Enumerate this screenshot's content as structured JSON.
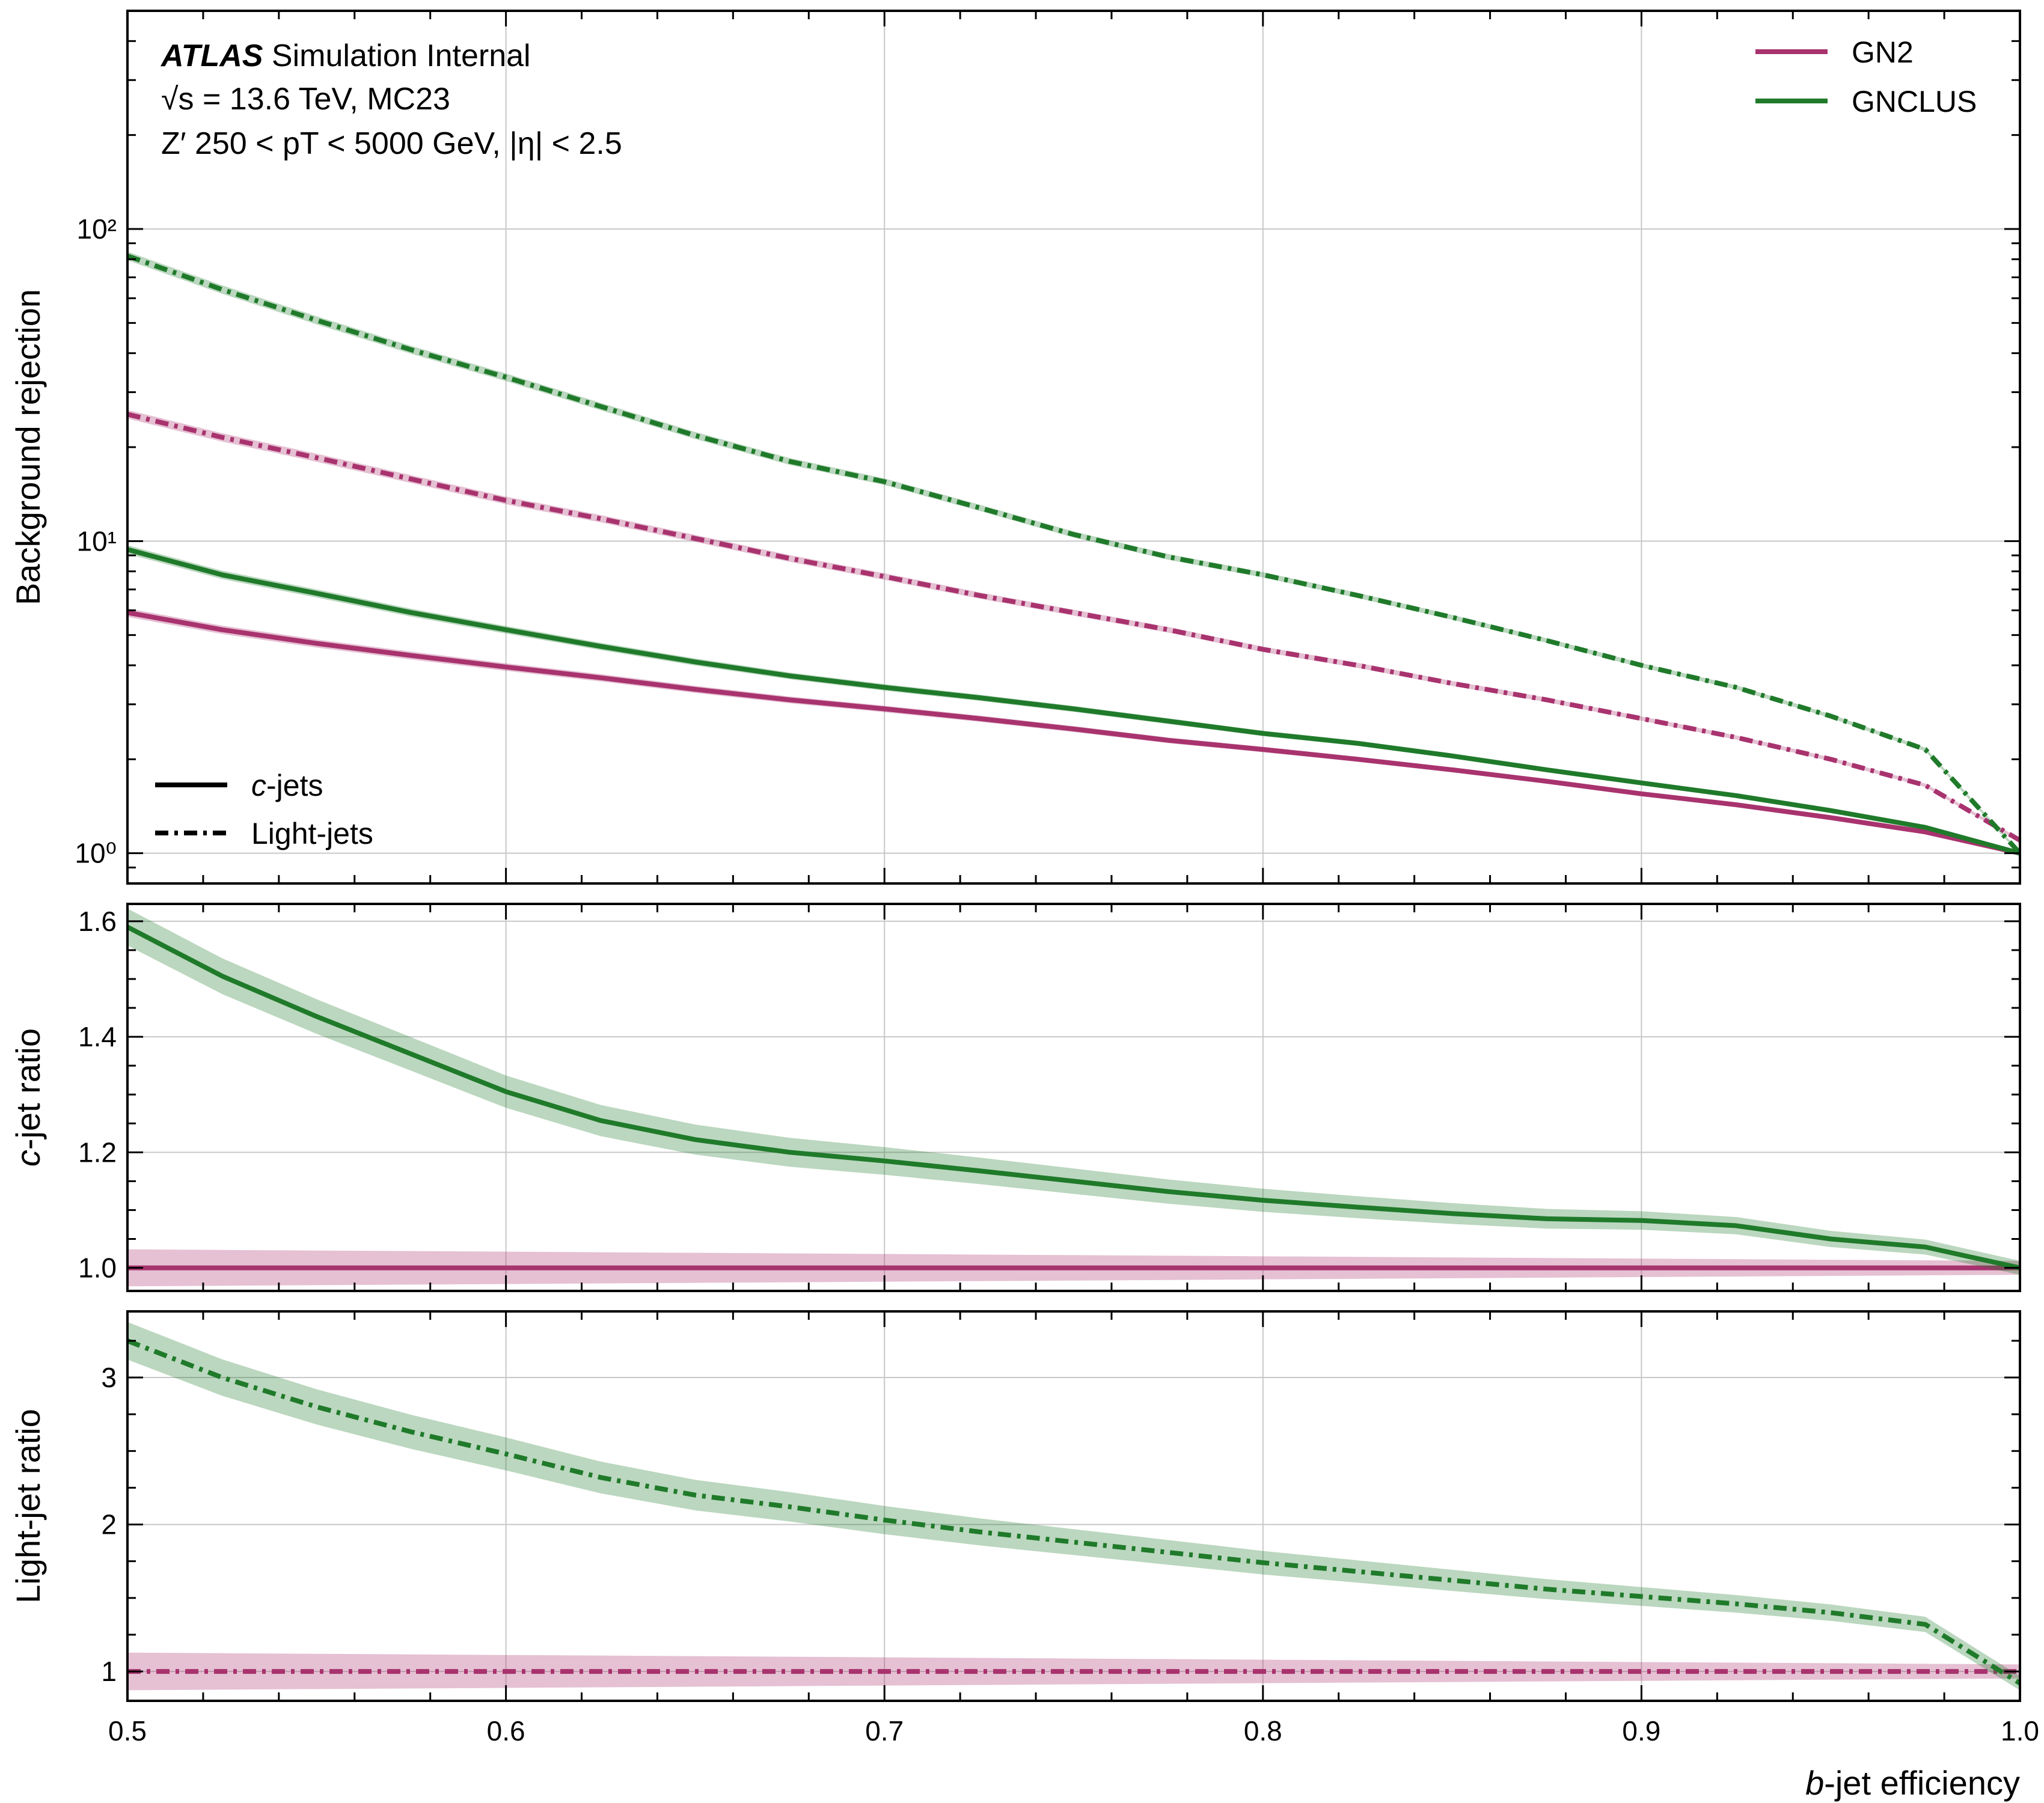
{
  "chart_data": {
    "type": "line",
    "x": [
      0.5,
      0.525,
      0.55,
      0.575,
      0.6,
      0.625,
      0.65,
      0.675,
      0.7,
      0.725,
      0.75,
      0.775,
      0.8,
      0.825,
      0.85,
      0.875,
      0.9,
      0.925,
      0.95,
      0.975,
      1.0
    ],
    "xlim": [
      0.5,
      1.0
    ],
    "xticks": [
      "0.5",
      "0.6",
      "0.7",
      "0.8",
      "0.9",
      "1.0"
    ],
    "xlabel": {
      "italic": "b",
      "rest": "-jet efficiency"
    },
    "colors": {
      "GN2": "#a8336e",
      "GNCLUS": "#1f7a2a",
      "grid": "#c8c8c8"
    },
    "info": {
      "atlas": "ATLAS",
      "status": "Simulation Internal",
      "line2": "√s = 13.6 TeV, MC23",
      "line3": "Z′ 250 < pT < 5000 GeV, |η| < 2.5"
    },
    "legend_taggers": [
      {
        "name": "GN2",
        "color": "#a8336e"
      },
      {
        "name": "GNCLUS",
        "color": "#1f7a2a"
      }
    ],
    "legend_styles": [
      {
        "italic": "c",
        "rest": "-jets",
        "style": "solid"
      },
      {
        "italic": "",
        "rest": "Light-jets",
        "style": "dashdot"
      }
    ],
    "panels": [
      {
        "id": "rejection",
        "ylabel": "Background rejection",
        "yscale": "log",
        "ylim": [
          0.8,
          500
        ],
        "yticks": [
          {
            "value": 1,
            "label": "10⁰"
          },
          {
            "value": 10,
            "label": "10¹"
          },
          {
            "value": 100,
            "label": "10²"
          }
        ],
        "series": [
          {
            "tagger": "GN2",
            "flavour": "Light-jets",
            "style": "dashdot",
            "values": [
              25.5,
              21.5,
              18.5,
              15.8,
              13.5,
              11.8,
              10.2,
              8.8,
              7.7,
              6.7,
              5.9,
              5.2,
              4.5,
              4.0,
              3.5,
              3.1,
              2.7,
              2.35,
              2.0,
              1.65,
              1.1
            ]
          },
          {
            "tagger": "GNCLUS",
            "flavour": "Light-jets",
            "style": "dashdot",
            "values": [
              82,
              64,
              51,
              41,
              33.5,
              27,
              21.8,
              18,
              15.5,
              12.8,
              10.5,
              8.9,
              7.8,
              6.7,
              5.7,
              4.8,
              4.0,
              3.4,
              2.75,
              2.15,
              1.0
            ]
          },
          {
            "tagger": "GN2",
            "flavour": "c-jets",
            "style": "solid",
            "values": [
              5.9,
              5.2,
              4.7,
              4.3,
              3.95,
              3.65,
              3.35,
              3.1,
              2.9,
              2.7,
              2.5,
              2.3,
              2.15,
              2.0,
              1.85,
              1.7,
              1.55,
              1.43,
              1.3,
              1.17,
              1.0
            ]
          },
          {
            "tagger": "GNCLUS",
            "flavour": "c-jets",
            "style": "solid",
            "values": [
              9.4,
              7.8,
              6.8,
              5.9,
              5.2,
              4.6,
              4.1,
              3.7,
              3.4,
              3.15,
              2.9,
              2.65,
              2.42,
              2.25,
              2.05,
              1.85,
              1.68,
              1.53,
              1.37,
              1.21,
              1.0
            ]
          }
        ]
      },
      {
        "id": "c-ratio",
        "ylabel": {
          "italic": "c",
          "rest": "-jet ratio"
        },
        "yscale": "linear",
        "ylim": [
          0.96,
          1.63
        ],
        "yticks": [
          {
            "value": 1.0,
            "label": "1.0"
          },
          {
            "value": 1.2,
            "label": "1.2"
          },
          {
            "value": 1.4,
            "label": "1.4"
          },
          {
            "value": 1.6,
            "label": "1.6"
          }
        ],
        "series": [
          {
            "tagger": "GN2",
            "flavour": "c-jets",
            "style": "solid",
            "values": [
              1.0,
              1.0,
              1.0,
              1.0,
              1.0,
              1.0,
              1.0,
              1.0,
              1.0,
              1.0,
              1.0,
              1.0,
              1.0,
              1.0,
              1.0,
              1.0,
              1.0,
              1.0,
              1.0,
              1.0,
              1.0
            ]
          },
          {
            "tagger": "GNCLUS",
            "flavour": "c-jets",
            "style": "solid",
            "values": [
              1.59,
              1.505,
              1.435,
              1.37,
              1.305,
              1.255,
              1.222,
              1.2,
              1.185,
              1.168,
              1.15,
              1.132,
              1.117,
              1.105,
              1.094,
              1.085,
              1.082,
              1.073,
              1.05,
              1.036,
              1.0
            ]
          }
        ]
      },
      {
        "id": "light-ratio",
        "ylabel": "Light-jet ratio",
        "yscale": "linear",
        "ylim": [
          0.8,
          3.45
        ],
        "yticks": [
          {
            "value": 1,
            "label": "1"
          },
          {
            "value": 2,
            "label": "2"
          },
          {
            "value": 3,
            "label": "3"
          }
        ],
        "series": [
          {
            "tagger": "GN2",
            "flavour": "Light-jets",
            "style": "dashdot",
            "values": [
              1.0,
              1.0,
              1.0,
              1.0,
              1.0,
              1.0,
              1.0,
              1.0,
              1.0,
              1.0,
              1.0,
              1.0,
              1.0,
              1.0,
              1.0,
              1.0,
              1.0,
              1.0,
              1.0,
              1.0,
              1.0
            ]
          },
          {
            "tagger": "GNCLUS",
            "flavour": "Light-jets",
            "style": "dashdot",
            "values": [
              3.25,
              3.0,
              2.8,
              2.63,
              2.48,
              2.32,
              2.2,
              2.12,
              2.03,
              1.95,
              1.88,
              1.81,
              1.74,
              1.68,
              1.62,
              1.56,
              1.51,
              1.46,
              1.4,
              1.32,
              0.92
            ]
          }
        ]
      }
    ]
  }
}
